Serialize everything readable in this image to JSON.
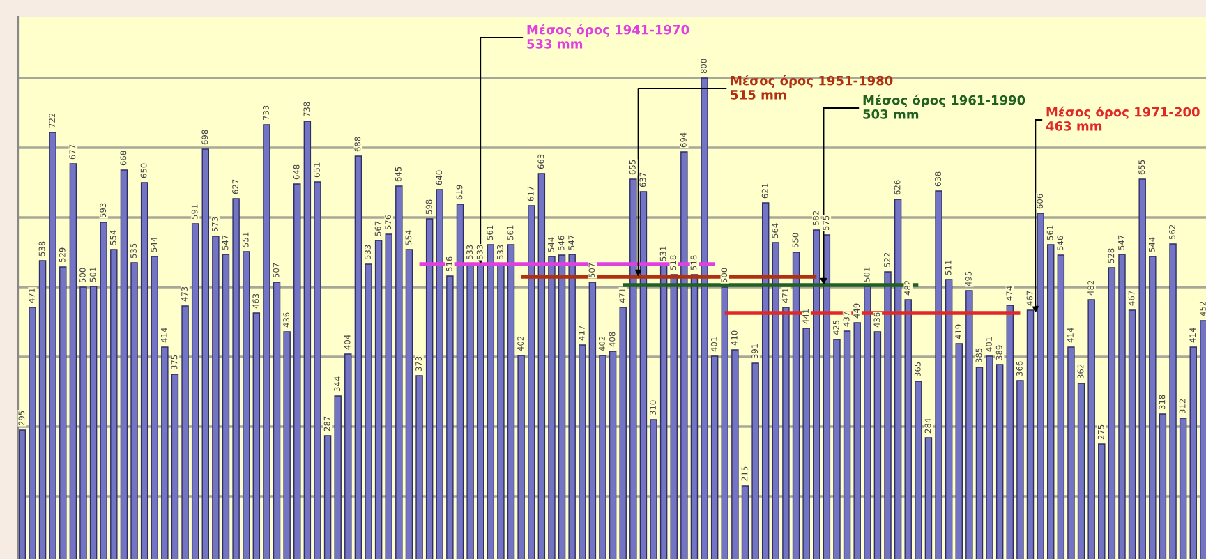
{
  "chart_data": {
    "type": "bar",
    "categories": [
      null,
      null,
      null,
      null,
      null,
      null,
      null,
      null,
      null,
      null,
      null,
      null,
      null,
      null,
      null,
      null,
      null,
      null,
      null,
      null,
      null,
      null,
      null,
      null,
      null,
      null,
      null,
      null,
      null,
      null,
      null,
      null,
      null,
      null,
      null,
      null,
      null,
      null,
      null,
      null,
      null,
      null,
      null,
      null,
      null,
      null,
      null,
      null,
      null,
      null,
      null,
      null,
      null,
      null,
      null,
      null,
      null,
      null,
      null,
      null,
      null,
      null,
      null,
      null,
      null,
      null,
      null,
      null,
      null,
      null,
      null,
      null,
      null,
      null,
      null,
      null,
      null,
      null,
      null,
      null,
      null,
      null,
      null,
      null,
      null,
      null,
      null,
      null,
      null,
      null,
      null,
      null,
      null,
      null,
      null,
      null,
      null,
      null,
      null,
      null,
      null,
      null,
      null,
      null,
      null,
      null,
      null,
      null,
      null,
      null,
      null,
      null,
      null,
      null,
      null,
      null,
      null
    ],
    "color": "#7474c4",
    "values": [
      295,
      471,
      538,
      722,
      529,
      677,
      500,
      501,
      593,
      554,
      668,
      535,
      650,
      544,
      414,
      375,
      473,
      591,
      698,
      573,
      547,
      627,
      551,
      463,
      733,
      507,
      436,
      648,
      738,
      651,
      287,
      344,
      404,
      688,
      533,
      567,
      576,
      645,
      554,
      373,
      598,
      640,
      516,
      619,
      533,
      533,
      561,
      533,
      561,
      402,
      617,
      663,
      544,
      546,
      547,
      417,
      507,
      402,
      408,
      471,
      655,
      637,
      310,
      531,
      518,
      694,
      518,
      800,
      401,
      500,
      410,
      215,
      391,
      621,
      564,
      471,
      550,
      441,
      582,
      575,
      425,
      437,
      449,
      501,
      436,
      522,
      626,
      482,
      365,
      284,
      638,
      511,
      419,
      495,
      385,
      401,
      389,
      474,
      366,
      467,
      606,
      561,
      546,
      414,
      362,
      482,
      275,
      528,
      547,
      467,
      655,
      544,
      318,
      562,
      312,
      414,
      452
    ],
    "ref_lines": [
      {
        "axis": "y",
        "value": 533,
        "label": "Μέσος όρος 1941-1970\n533 mm",
        "color": "#e040e0"
      },
      {
        "axis": "y",
        "value": 515,
        "label": "Μέσος όρος 1951-1980\n515 mm",
        "color": "#b03010"
      },
      {
        "axis": "y",
        "value": 503,
        "label": "Μέσος όρος 1961-1990\n503 mm",
        "color": "#206020"
      },
      {
        "axis": "y",
        "value": 463,
        "label": "Μέσος όρος 1971-200\n463 mm",
        "color": "#e02828"
      }
    ],
    "ylim": [
      110,
      888
    ],
    "yticks": [
      {
        "value": 200,
        "label": null
      },
      {
        "value": 300,
        "label": null
      },
      {
        "value": 400,
        "label": null
      },
      {
        "value": 500,
        "label": null
      },
      {
        "value": 600,
        "label": null
      },
      {
        "value": 700,
        "label": null
      },
      {
        "value": 800,
        "label": null
      }
    ],
    "grid": "y",
    "data_labels": true
  }
}
